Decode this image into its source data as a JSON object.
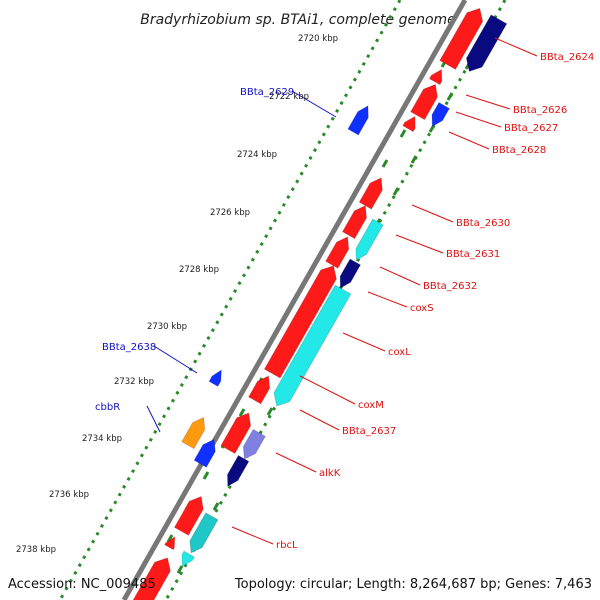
{
  "map": {
    "title": "Bradyrhizobium sp. BTAi1, complete genome",
    "accession": "Accession: NC_009485",
    "topology": "Topology: circular; Length: 8,264,687 bp; Genes: 7,463"
  },
  "colors": {
    "backbone": "#777777",
    "tick": "#2a8a2a",
    "cds_forward": "#ff1a1a",
    "cds_reverse_dark": "#0a0a80",
    "cds_blue": "#1030ff",
    "cds_cyan": "#22e8e8",
    "cds_teal": "#1fc7c7",
    "cds_orange": "#ff9a10",
    "cds_lavender": "#8080e0",
    "label_red": "#e01010",
    "label_blue": "#1010c0"
  },
  "kbp_ticks": [
    "2720 kbp",
    "2722 kbp",
    "2724 kbp",
    "2726 kbp",
    "2728 kbp",
    "2730 kbp",
    "2732 kbp",
    "2734 kbp",
    "2736 kbp",
    "2738 kbp"
  ],
  "right_labels": [
    "BBta_2624",
    "BBta_2626",
    "BBta_2627",
    "BBta_2628",
    "BBta_2630",
    "BBta_2631",
    "BBta_2632",
    "coxS",
    "coxL",
    "coxM",
    "BBta_2637",
    "alkK",
    "rbcL"
  ],
  "left_labels": [
    "BBta_2629",
    "BBta_2638",
    "cbbR"
  ]
}
